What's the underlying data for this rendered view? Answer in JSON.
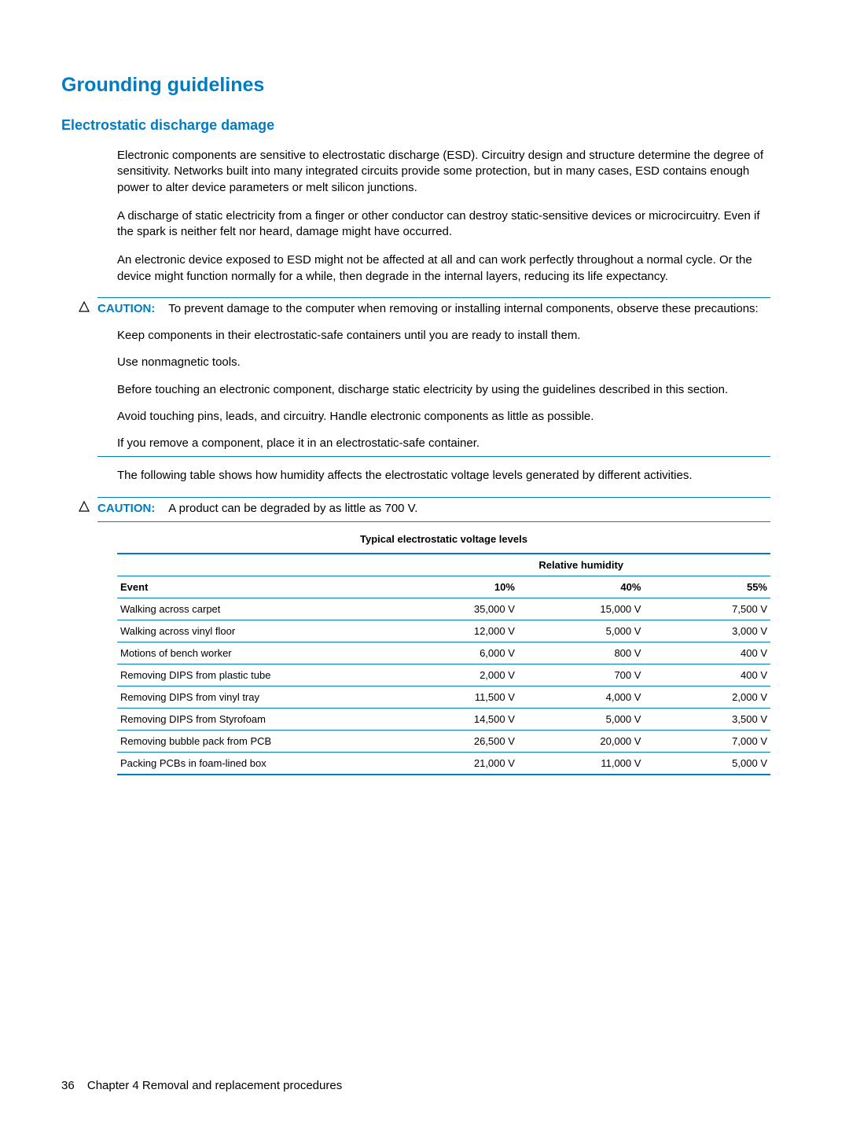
{
  "heading1": "Grounding guidelines",
  "heading2": "Electrostatic discharge damage",
  "paras": {
    "p1": "Electronic components are sensitive to electrostatic discharge (ESD). Circuitry design and structure determine the degree of sensitivity. Networks built into many integrated circuits provide some protection, but in many cases, ESD contains enough power to alter device parameters or melt silicon junctions.",
    "p2": "A discharge of static electricity from a finger or other conductor can destroy static-sensitive devices or microcircuitry. Even if the spark is neither felt nor heard, damage might have occurred.",
    "p3": "An electronic device exposed to ESD might not be affected at all and can work perfectly throughout a normal cycle. Or the device might function normally for a while, then degrade in the internal layers, reducing its life expectancy."
  },
  "caution1": {
    "label": "CAUTION:",
    "lead": "To prevent damage to the computer when removing or installing internal components, observe these precautions:",
    "items": {
      "i1": "Keep components in their electrostatic-safe containers until you are ready to install them.",
      "i2": "Use nonmagnetic tools.",
      "i3": "Before touching an electronic component, discharge static electricity by using the guidelines described in this section.",
      "i4": "Avoid touching pins, leads, and circuitry. Handle electronic components as little as possible.",
      "i5": "If you remove a component, place it in an electrostatic-safe container."
    }
  },
  "para_after_caution": "The following table shows how humidity affects the electrostatic voltage levels generated by different activities.",
  "caution2": {
    "label": "CAUTION:",
    "text": "A product can be degraded by as little as 700 V."
  },
  "table": {
    "title": "Typical electrostatic voltage levels",
    "humidity_header": "Relative humidity",
    "columns": {
      "event": "Event",
      "h10": "10%",
      "h40": "40%",
      "h55": "55%"
    },
    "rows": [
      {
        "event": "Walking across carpet",
        "v10": "35,000 V",
        "v40": "15,000 V",
        "v55": "7,500 V"
      },
      {
        "event": "Walking across vinyl floor",
        "v10": "12,000 V",
        "v40": "5,000 V",
        "v55": "3,000 V"
      },
      {
        "event": "Motions of bench worker",
        "v10": "6,000 V",
        "v40": "800 V",
        "v55": "400 V"
      },
      {
        "event": "Removing DIPS from plastic tube",
        "v10": "2,000 V",
        "v40": "700 V",
        "v55": "400 V"
      },
      {
        "event": "Removing DIPS from vinyl tray",
        "v10": "11,500 V",
        "v40": "4,000 V",
        "v55": "2,000 V"
      },
      {
        "event": "Removing DIPS from Styrofoam",
        "v10": "14,500 V",
        "v40": "5,000 V",
        "v55": "3,500 V"
      },
      {
        "event": "Removing bubble pack from PCB",
        "v10": "26,500 V",
        "v40": "20,000 V",
        "v55": "7,000 V"
      },
      {
        "event": "Packing PCBs in foam-lined box",
        "v10": "21,000 V",
        "v40": "11,000 V",
        "v55": "5,000 V"
      }
    ]
  },
  "footer": {
    "page_number": "36",
    "chapter": "Chapter 4   Removal and replacement procedures"
  },
  "colors": {
    "accent": "#007cc3",
    "text": "#000000",
    "background": "#ffffff"
  }
}
